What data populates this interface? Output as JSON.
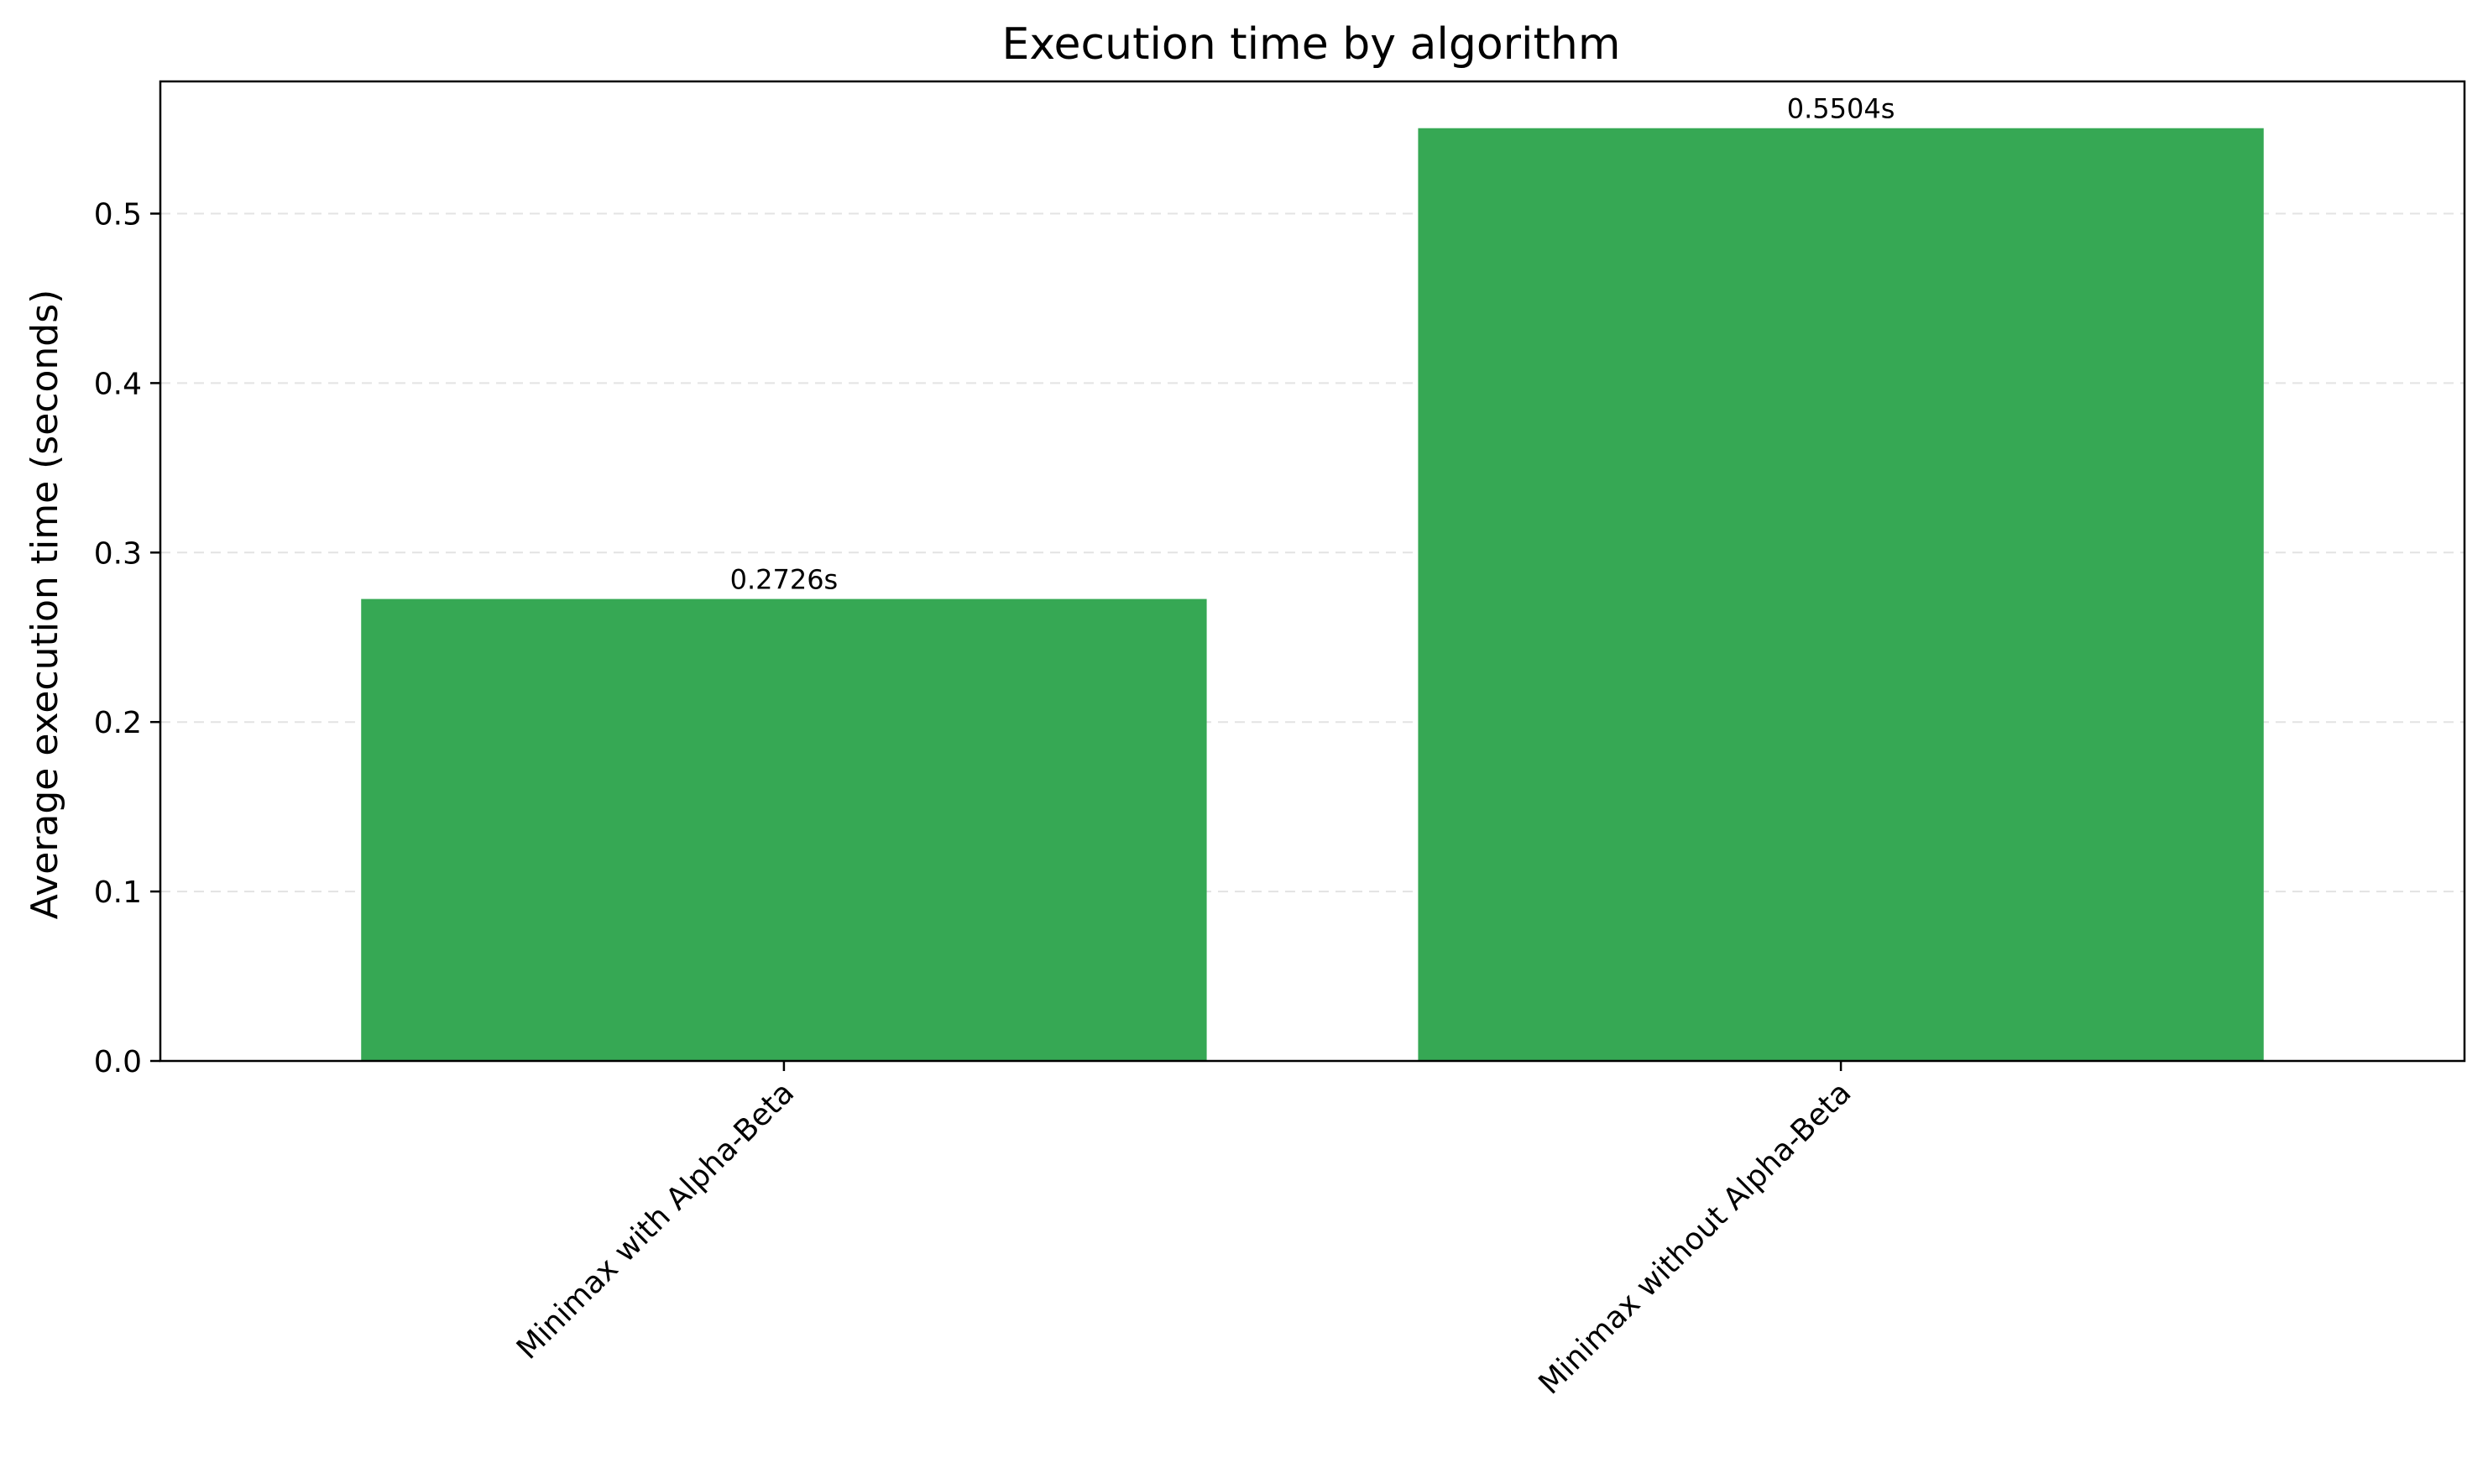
{
  "chart_data": {
    "type": "bar",
    "title": "Execution time by algorithm",
    "xlabel": "",
    "ylabel": "Average execution time (seconds)",
    "categories": [
      "Minimax with Alpha-Beta",
      "Minimax without Alpha-Beta"
    ],
    "values": [
      0.2726,
      0.5504
    ],
    "value_labels": [
      "0.2726s",
      "0.5504s"
    ],
    "ylim": [
      0,
      0.578
    ],
    "yticks": [
      0.0,
      0.1,
      0.2,
      0.3,
      0.4,
      0.5
    ],
    "ytick_labels": [
      "0.0",
      "0.1",
      "0.2",
      "0.3",
      "0.4",
      "0.5"
    ],
    "bar_color": "#36a854",
    "grid": "y-dashed",
    "legend": "none"
  }
}
